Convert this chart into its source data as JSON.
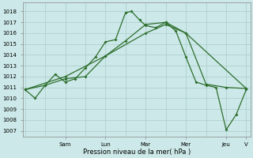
{
  "bg_color": "#cce8e8",
  "grid_color": "#aacccc",
  "line_color": "#2d6e2d",
  "ylabel": "Pression niveau de la mer( hPa )",
  "ylim": [
    1006.5,
    1018.8
  ],
  "yticks": [
    1007,
    1008,
    1009,
    1010,
    1011,
    1012,
    1013,
    1014,
    1015,
    1016,
    1017,
    1018
  ],
  "xlim": [
    -0.1,
    11.2
  ],
  "xtick_positions": [
    2,
    4,
    6,
    8,
    10,
    11
  ],
  "xtick_labels": [
    "Sam",
    "Lun",
    "Mar",
    "Mer",
    "Jeu",
    "V"
  ],
  "series1_x": [
    0.0,
    0.5,
    1.0,
    1.5,
    2.0,
    2.5,
    3.0,
    3.5,
    4.0,
    4.5,
    5.0,
    5.3,
    5.7,
    6.0,
    6.5,
    7.0,
    7.5,
    8.0,
    8.5,
    9.0,
    9.5,
    10.0,
    10.5,
    11.0
  ],
  "series1_y": [
    1010.8,
    1010.0,
    1011.2,
    1012.2,
    1011.5,
    1011.8,
    1012.8,
    1013.8,
    1015.2,
    1015.4,
    1017.9,
    1018.0,
    1017.2,
    1016.7,
    1016.5,
    1017.0,
    1016.2,
    1013.8,
    1011.5,
    1011.2,
    1011.0,
    1007.1,
    1008.5,
    1010.8
  ],
  "series2_x": [
    0.0,
    1.0,
    2.0,
    3.0,
    4.0,
    5.0,
    6.0,
    7.0,
    8.0,
    9.0,
    10.0,
    11.0
  ],
  "series2_y": [
    1010.8,
    1011.2,
    1011.8,
    1012.0,
    1013.9,
    1015.3,
    1016.8,
    1017.0,
    1016.0,
    1011.3,
    1011.0,
    1010.9
  ],
  "series3_x": [
    0.0,
    2.0,
    4.0,
    6.0,
    7.0,
    8.0,
    11.0
  ],
  "series3_y": [
    1010.8,
    1012.0,
    1013.9,
    1016.0,
    1016.8,
    1016.0,
    1010.9
  ],
  "markersize": 2.0,
  "linewidth": 0.9,
  "tick_fontsize": 5.0,
  "xlabel_fontsize": 6.0
}
